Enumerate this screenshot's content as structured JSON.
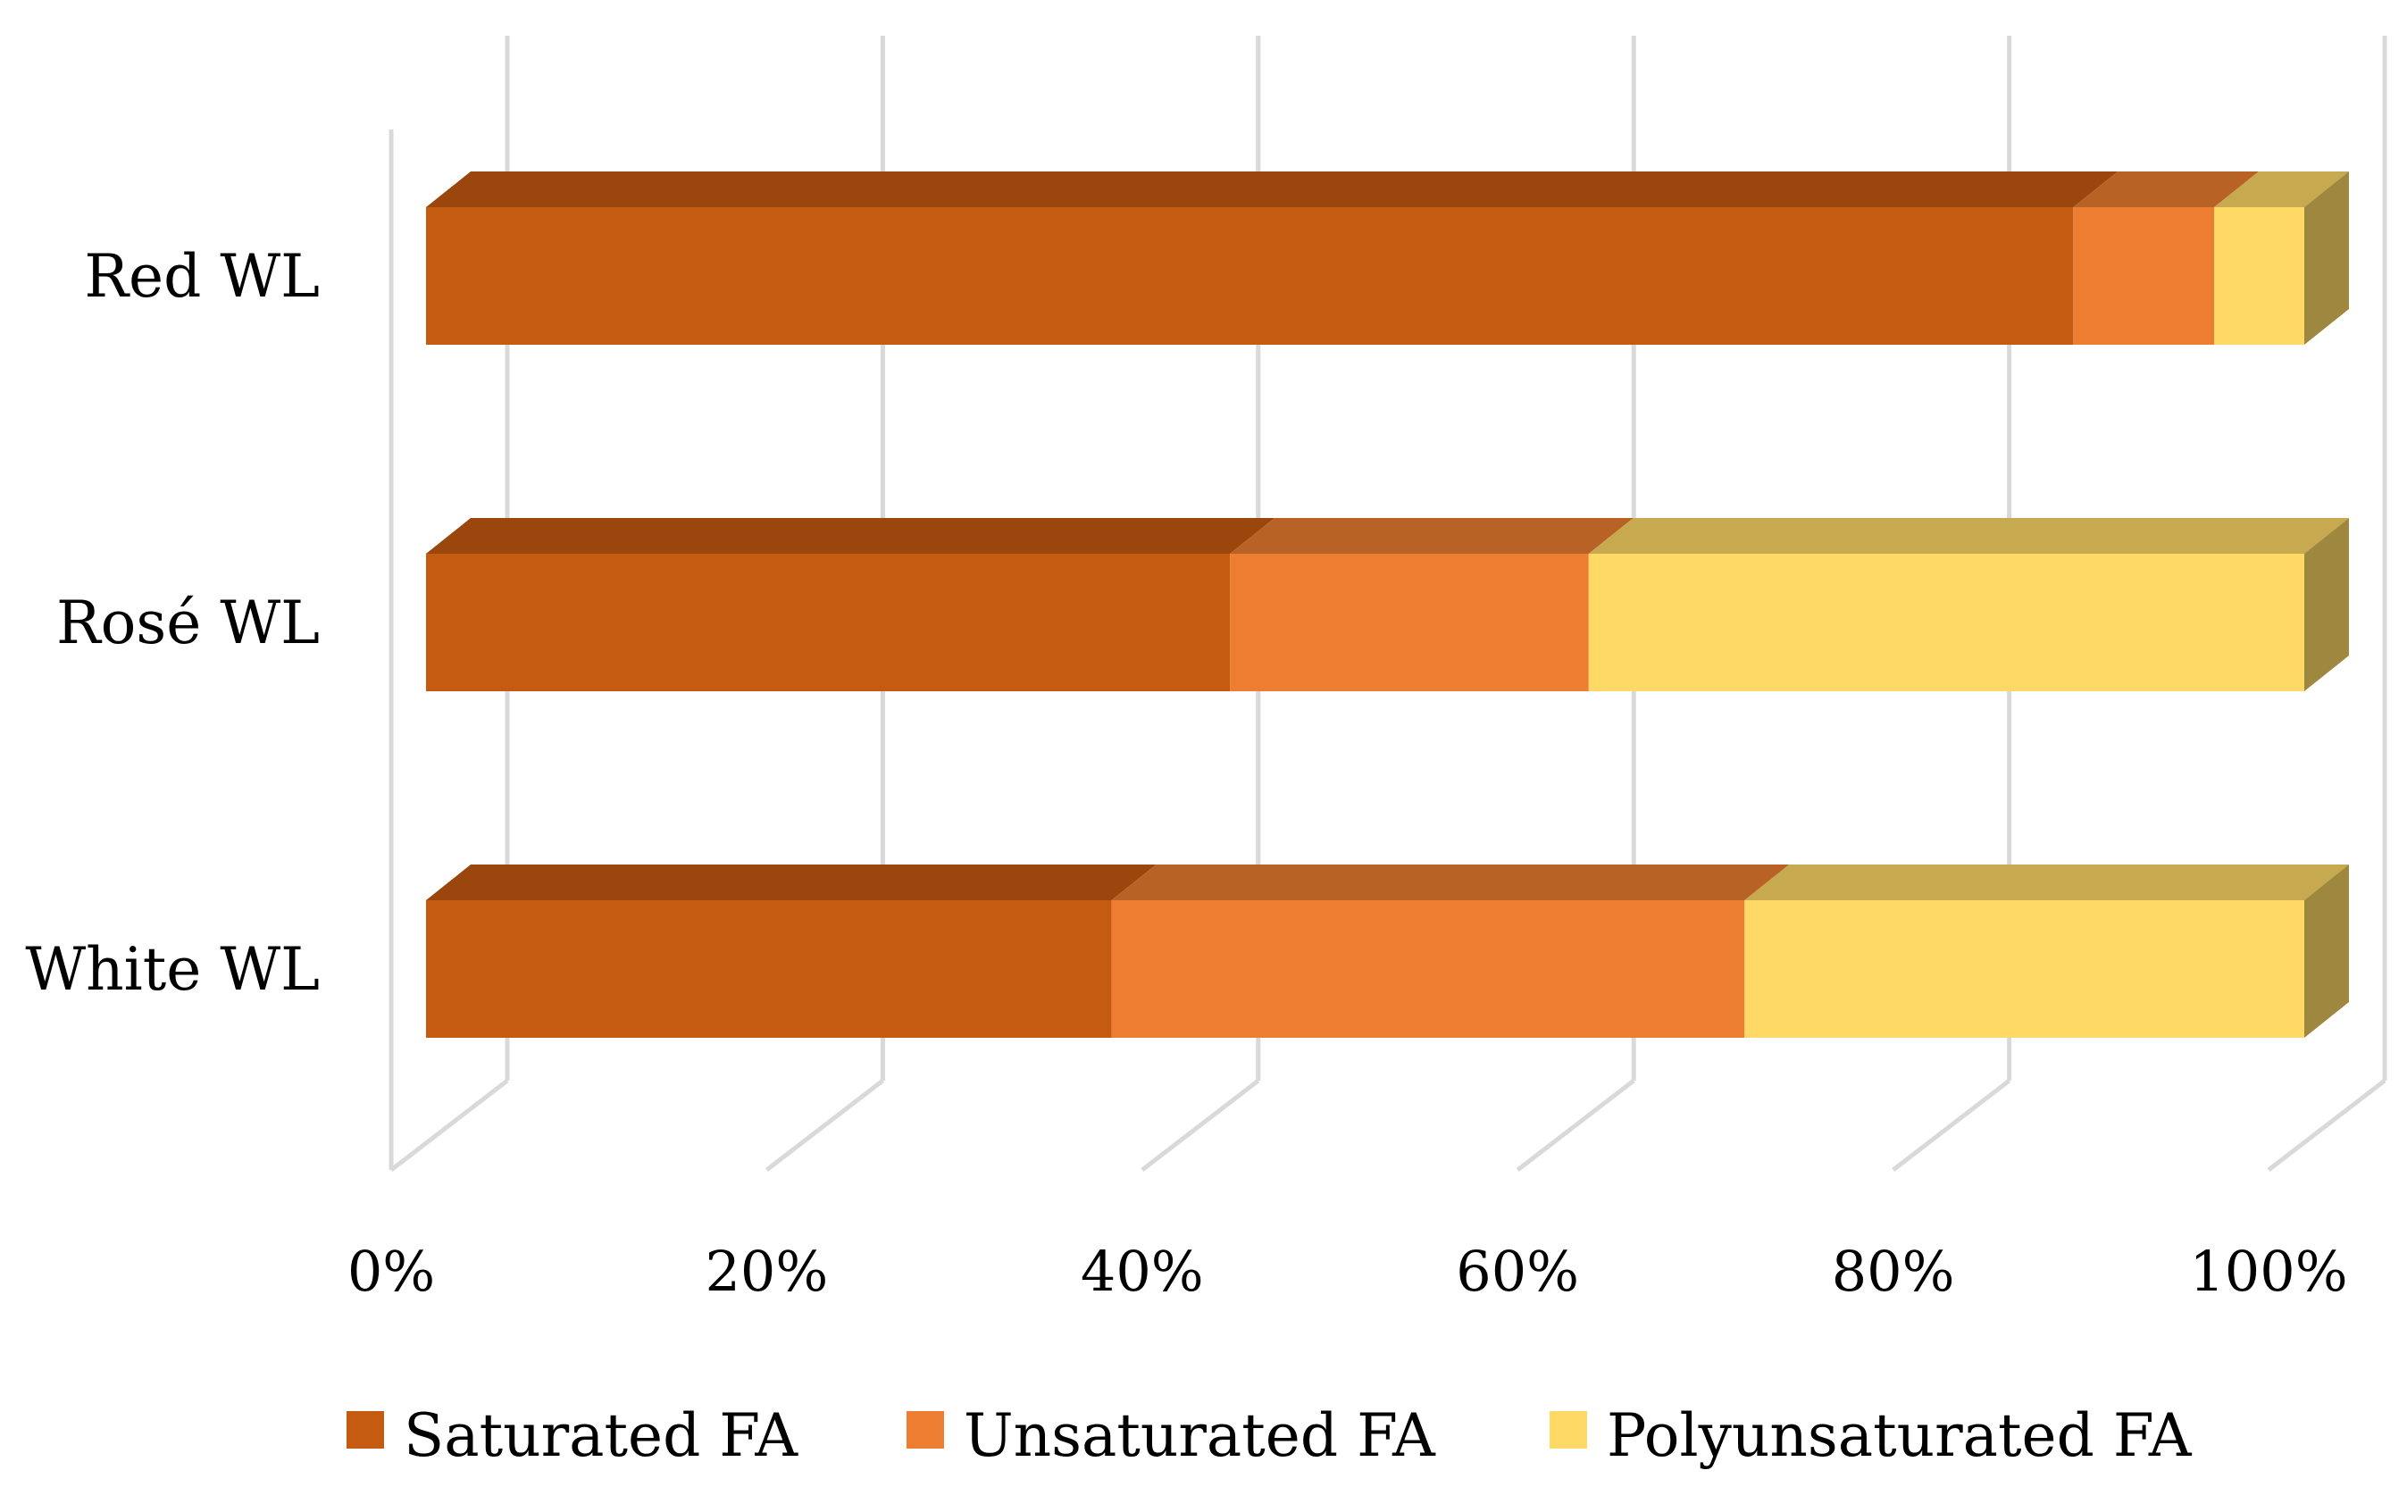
{
  "chart_data": {
    "type": "bar",
    "orientation": "horizontal",
    "stacked": "percent",
    "style": "3d",
    "categories": [
      "Red WL",
      "Rosé WL",
      "White WL"
    ],
    "series": [
      {
        "name": "Saturated FA",
        "values": [
          87.7,
          42.8,
          36.5
        ],
        "color": "#C55A11"
      },
      {
        "name": "Unsaturated FA",
        "values": [
          7.5,
          19.1,
          33.7
        ],
        "color": "#ED7D31"
      },
      {
        "name": "Polyunsaturated FA",
        "values": [
          4.8,
          38.1,
          29.8
        ],
        "color": "#FFD966"
      }
    ],
    "x_ticks": [
      "0%",
      "20%",
      "40%",
      "60%",
      "80%",
      "100%"
    ],
    "xlim": [
      0,
      100
    ],
    "grid": true,
    "legend_position": "bottom"
  }
}
